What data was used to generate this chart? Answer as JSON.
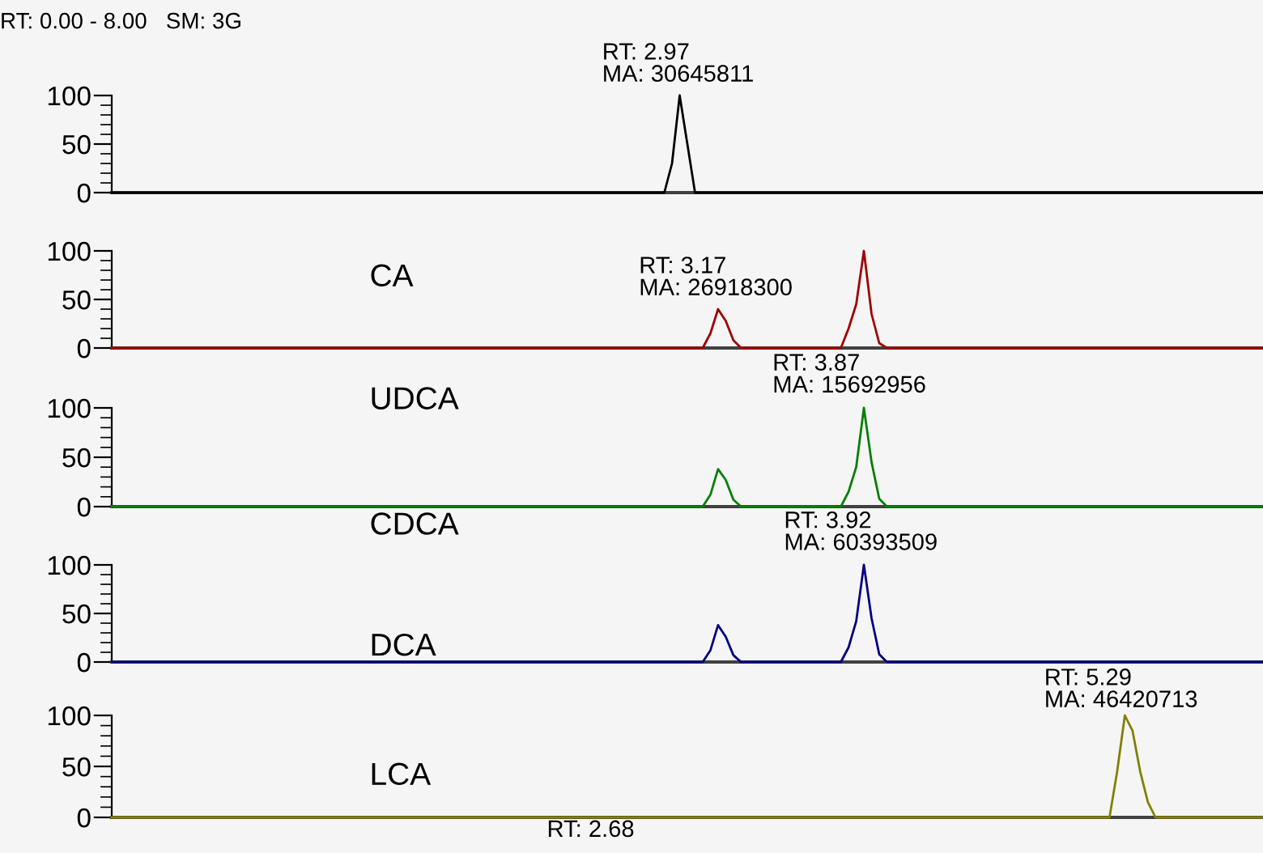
{
  "chart_data": [
    {
      "type": "line",
      "title": "RT: 0.00 - 8.00   SM: 3G",
      "categories": [
        null,
        null,
        null,
        null,
        null,
        null,
        null,
        null,
        null,
        null,
        null,
        null,
        null,
        null,
        null,
        null,
        null,
        null,
        null,
        null,
        null,
        null,
        null,
        null,
        null,
        null,
        null,
        null,
        null,
        null,
        null,
        null,
        null,
        null,
        null,
        null,
        null,
        null,
        null,
        null,
        null,
        null,
        null,
        null,
        null,
        null,
        null,
        null,
        null,
        null,
        null,
        null,
        null,
        null,
        null,
        null,
        null,
        null,
        null,
        null,
        null,
        null,
        null,
        null,
        null,
        null,
        null,
        null,
        null,
        null,
        null,
        null,
        null,
        null,
        null,
        null,
        null,
        null,
        null,
        null,
        null,
        null,
        null,
        null,
        null,
        null,
        null,
        null,
        null,
        null,
        null,
        null,
        null,
        null,
        null,
        null,
        null,
        null,
        null,
        null,
        null,
        null,
        null,
        null,
        null,
        null,
        null,
        null,
        null,
        null,
        null,
        null,
        null,
        null,
        null,
        null,
        null,
        null,
        null,
        null,
        null,
        null,
        null,
        null,
        null,
        null,
        null,
        null,
        null,
        null,
        null,
        null,
        null,
        null,
        null,
        null,
        null,
        null,
        null,
        null,
        null,
        null,
        null,
        null,
        null,
        null,
        null,
        null,
        null,
        null,
        null
      ],
      "ylim": [
        0,
        100
      ],
      "yticks": [
        0,
        50,
        100
      ],
      "tick_labels": "y",
      "series": [
        {
          "color": "#000000",
          "values": [
            0,
            0,
            0,
            0,
            0,
            0,
            0,
            0,
            0,
            0,
            0,
            0,
            0,
            0,
            0,
            0,
            0,
            0,
            0,
            0,
            0,
            0,
            0,
            0,
            0,
            0,
            0,
            0,
            0,
            0,
            0,
            0,
            0,
            0,
            0,
            0,
            0,
            0,
            0,
            0,
            0,
            0,
            0,
            0,
            0,
            0,
            0,
            0,
            0,
            0,
            0,
            0,
            0,
            0,
            0,
            0,
            0,
            0,
            0,
            0,
            0,
            0,
            0,
            0,
            0,
            0,
            0,
            0,
            0,
            0,
            0,
            0,
            0,
            30,
            100,
            50,
            0,
            0,
            0,
            0,
            0,
            0,
            0,
            0,
            0,
            0,
            0,
            0,
            0,
            0,
            0,
            0,
            0,
            0,
            0,
            0,
            0,
            0,
            0,
            0,
            0,
            0,
            0,
            0,
            0,
            0,
            0,
            0,
            0,
            0,
            0,
            0,
            0,
            0,
            0,
            0,
            0,
            0,
            0,
            0,
            0,
            0,
            0,
            0,
            0,
            0,
            0,
            0,
            0,
            0,
            0,
            0,
            0,
            0,
            0,
            0,
            0,
            0,
            0,
            0,
            0,
            0,
            0,
            0,
            0,
            0,
            0,
            0,
            0,
            0,
            0
          ]
        }
      ],
      "annotations": [
        "RT: 2.97\nMA: 30645811"
      ]
    },
    {
      "type": "line",
      "categories": [
        null,
        null,
        null,
        null,
        null,
        null,
        null,
        null,
        null,
        null,
        null,
        null,
        null,
        null,
        null,
        null,
        null,
        null,
        null,
        null,
        null,
        null,
        null,
        null,
        null,
        null,
        null,
        null,
        null,
        null,
        null,
        null,
        null,
        null,
        null,
        null,
        null,
        null,
        null,
        null,
        null,
        null,
        null,
        null,
        null,
        null,
        null,
        null,
        null,
        null,
        null,
        null,
        null,
        null,
        null,
        null,
        null,
        null,
        null,
        null,
        null,
        null,
        null,
        null,
        null,
        null,
        null,
        null,
        null,
        null,
        null,
        null,
        null,
        null,
        null,
        null,
        null,
        null,
        null,
        null,
        null,
        null,
        null,
        null,
        null,
        null,
        null,
        null,
        null,
        null,
        null,
        null,
        null,
        null,
        null,
        null,
        null,
        null,
        null,
        null,
        null,
        null,
        null,
        null,
        null,
        null,
        null,
        null,
        null,
        null,
        null,
        null,
        null,
        null,
        null,
        null,
        null,
        null,
        null,
        null,
        null,
        null,
        null,
        null,
        null,
        null,
        null,
        null,
        null,
        null,
        null,
        null,
        null,
        null,
        null,
        null,
        null,
        null,
        null,
        null,
        null,
        null,
        null,
        null,
        null,
        null,
        null,
        null,
        null,
        null,
        null
      ],
      "ylim": [
        0,
        100
      ],
      "yticks": [
        0,
        50,
        100
      ],
      "tick_labels": "y",
      "series": [
        {
          "color": "#a00000",
          "values": [
            0,
            0,
            0,
            0,
            0,
            0,
            0,
            0,
            0,
            0,
            0,
            0,
            0,
            0,
            0,
            0,
            0,
            0,
            0,
            0,
            0,
            0,
            0,
            0,
            0,
            0,
            0,
            0,
            0,
            0,
            0,
            0,
            0,
            0,
            0,
            0,
            0,
            0,
            0,
            0,
            0,
            0,
            0,
            0,
            0,
            0,
            0,
            0,
            0,
            0,
            0,
            0,
            0,
            0,
            0,
            0,
            0,
            0,
            0,
            0,
            0,
            0,
            0,
            0,
            0,
            0,
            0,
            0,
            0,
            0,
            0,
            0,
            0,
            0,
            0,
            0,
            0,
            0,
            15,
            40,
            28,
            8,
            0,
            0,
            0,
            0,
            0,
            0,
            0,
            0,
            0,
            0,
            0,
            0,
            0,
            0,
            20,
            45,
            100,
            35,
            5,
            0,
            0,
            0,
            0,
            0,
            0,
            0,
            0,
            0,
            0,
            0,
            0,
            0,
            0,
            0,
            0,
            0,
            0,
            0,
            0,
            0,
            0,
            0,
            0,
            0,
            0,
            0,
            0,
            0,
            0,
            0,
            0,
            0,
            0,
            0,
            0,
            0,
            0,
            0,
            0,
            0,
            0,
            0,
            0,
            0,
            0,
            0,
            0,
            0,
            0
          ]
        }
      ],
      "annotations": [
        "CA",
        "RT: 3.17\nMA: 26918300"
      ]
    },
    {
      "type": "line",
      "categories": [
        null,
        null,
        null,
        null,
        null,
        null,
        null,
        null,
        null,
        null,
        null,
        null,
        null,
        null,
        null,
        null,
        null,
        null,
        null,
        null,
        null,
        null,
        null,
        null,
        null,
        null,
        null,
        null,
        null,
        null,
        null,
        null,
        null,
        null,
        null,
        null,
        null,
        null,
        null,
        null,
        null,
        null,
        null,
        null,
        null,
        null,
        null,
        null,
        null,
        null,
        null,
        null,
        null,
        null,
        null,
        null,
        null,
        null,
        null,
        null,
        null,
        null,
        null,
        null,
        null,
        null,
        null,
        null,
        null,
        null,
        null,
        null,
        null,
        null,
        null,
        null,
        null,
        null,
        null,
        null,
        null,
        null,
        null,
        null,
        null,
        null,
        null,
        null,
        null,
        null,
        null,
        null,
        null,
        null,
        null,
        null,
        null,
        null,
        null,
        null,
        null,
        null,
        null,
        null,
        null,
        null,
        null,
        null,
        null,
        null,
        null,
        null,
        null,
        null,
        null,
        null,
        null,
        null,
        null,
        null,
        null,
        null,
        null,
        null,
        null,
        null,
        null,
        null,
        null,
        null,
        null,
        null,
        null,
        null,
        null,
        null,
        null,
        null,
        null,
        null,
        null,
        null,
        null,
        null,
        null,
        null,
        null,
        null,
        null,
        null,
        null
      ],
      "ylim": [
        0,
        100
      ],
      "yticks": [
        0,
        50,
        100
      ],
      "tick_labels": "y",
      "series": [
        {
          "color": "#008000",
          "values": [
            0,
            0,
            0,
            0,
            0,
            0,
            0,
            0,
            0,
            0,
            0,
            0,
            0,
            0,
            0,
            0,
            0,
            0,
            0,
            0,
            0,
            0,
            0,
            0,
            0,
            0,
            0,
            0,
            0,
            0,
            0,
            0,
            0,
            0,
            0,
            0,
            0,
            0,
            0,
            0,
            0,
            0,
            0,
            0,
            0,
            0,
            0,
            0,
            0,
            0,
            0,
            0,
            0,
            0,
            0,
            0,
            0,
            0,
            0,
            0,
            0,
            0,
            0,
            0,
            0,
            0,
            0,
            0,
            0,
            0,
            0,
            0,
            0,
            0,
            0,
            0,
            0,
            0,
            12,
            38,
            27,
            7,
            0,
            0,
            0,
            0,
            0,
            0,
            0,
            0,
            0,
            0,
            0,
            0,
            0,
            0,
            15,
            40,
            100,
            45,
            8,
            0,
            0,
            0,
            0,
            0,
            0,
            0,
            0,
            0,
            0,
            0,
            0,
            0,
            0,
            0,
            0,
            0,
            0,
            0,
            0,
            0,
            0,
            0,
            0,
            0,
            0,
            0,
            0,
            0,
            0,
            0,
            0,
            0,
            0,
            0,
            0,
            0,
            0,
            0,
            0,
            0,
            0,
            0,
            0,
            0,
            0,
            0,
            0,
            0,
            0
          ]
        }
      ],
      "annotations": [
        "UDCA",
        "CDCA",
        "RT: 3.87\nMA: 15692956"
      ]
    },
    {
      "type": "line",
      "categories": [
        null,
        null,
        null,
        null,
        null,
        null,
        null,
        null,
        null,
        null,
        null,
        null,
        null,
        null,
        null,
        null,
        null,
        null,
        null,
        null,
        null,
        null,
        null,
        null,
        null,
        null,
        null,
        null,
        null,
        null,
        null,
        null,
        null,
        null,
        null,
        null,
        null,
        null,
        null,
        null,
        null,
        null,
        null,
        null,
        null,
        null,
        null,
        null,
        null,
        null,
        null,
        null,
        null,
        null,
        null,
        null,
        null,
        null,
        null,
        null,
        null,
        null,
        null,
        null,
        null,
        null,
        null,
        null,
        null,
        null,
        null,
        null,
        null,
        null,
        null,
        null,
        null,
        null,
        null,
        null,
        null,
        null,
        null,
        null,
        null,
        null,
        null,
        null,
        null,
        null,
        null,
        null,
        null,
        null,
        null,
        null,
        null,
        null,
        null,
        null,
        null,
        null,
        null,
        null,
        null,
        null,
        null,
        null,
        null,
        null,
        null,
        null,
        null,
        null,
        null,
        null,
        null,
        null,
        null,
        null,
        null,
        null,
        null,
        null,
        null,
        null,
        null,
        null,
        null,
        null,
        null,
        null,
        null,
        null,
        null,
        null,
        null,
        null,
        null,
        null,
        null,
        null,
        null,
        null,
        null,
        null,
        null,
        null,
        null,
        null,
        null
      ],
      "ylim": [
        0,
        100
      ],
      "yticks": [
        0,
        50,
        100
      ],
      "tick_labels": "y",
      "series": [
        {
          "color": "#000080",
          "values": [
            0,
            0,
            0,
            0,
            0,
            0,
            0,
            0,
            0,
            0,
            0,
            0,
            0,
            0,
            0,
            0,
            0,
            0,
            0,
            0,
            0,
            0,
            0,
            0,
            0,
            0,
            0,
            0,
            0,
            0,
            0,
            0,
            0,
            0,
            0,
            0,
            0,
            0,
            0,
            0,
            0,
            0,
            0,
            0,
            0,
            0,
            0,
            0,
            0,
            0,
            0,
            0,
            0,
            0,
            0,
            0,
            0,
            0,
            0,
            0,
            0,
            0,
            0,
            0,
            0,
            0,
            0,
            0,
            0,
            0,
            0,
            0,
            0,
            0,
            0,
            0,
            0,
            0,
            12,
            38,
            26,
            7,
            0,
            0,
            0,
            0,
            0,
            0,
            0,
            0,
            0,
            0,
            0,
            0,
            0,
            0,
            15,
            42,
            100,
            45,
            8,
            0,
            0,
            0,
            0,
            0,
            0,
            0,
            0,
            0,
            0,
            0,
            0,
            0,
            0,
            0,
            0,
            0,
            0,
            0,
            0,
            0,
            0,
            0,
            0,
            0,
            0,
            0,
            0,
            0,
            0,
            0,
            0,
            0,
            0,
            0,
            0,
            0,
            0,
            0,
            0,
            0,
            0,
            0,
            0,
            0,
            0,
            0,
            0,
            0,
            0
          ]
        }
      ],
      "annotations": [
        "DCA",
        "RT: 3.92\nMA: 60393509"
      ]
    },
    {
      "type": "line",
      "categories": [
        null,
        null,
        null,
        null,
        null,
        null,
        null,
        null,
        null,
        null,
        null,
        null,
        null,
        null,
        null,
        null,
        null,
        null,
        null,
        null,
        null,
        null,
        null,
        null,
        null,
        null,
        null,
        null,
        null,
        null,
        null,
        null,
        null,
        null,
        null,
        null,
        null,
        null,
        null,
        null,
        null,
        null,
        null,
        null,
        null,
        null,
        null,
        null,
        null,
        null,
        null,
        null,
        null,
        null,
        null,
        null,
        null,
        null,
        null,
        null,
        null,
        null,
        null,
        null,
        null,
        null,
        null,
        null,
        null,
        null,
        null,
        null,
        null,
        null,
        null,
        null,
        null,
        null,
        null,
        null,
        null,
        null,
        null,
        null,
        null,
        null,
        null,
        null,
        null,
        null,
        null,
        null,
        null,
        null,
        null,
        null,
        null,
        null,
        null,
        null,
        null,
        null,
        null,
        null,
        null,
        null,
        null,
        null,
        null,
        null,
        null,
        null,
        null,
        null,
        null,
        null,
        null,
        null,
        null,
        null,
        null,
        null,
        null,
        null,
        null,
        null,
        null,
        null,
        null,
        null,
        null,
        null,
        null,
        null,
        null,
        null,
        null,
        null,
        null,
        null,
        null,
        null,
        null,
        null,
        null,
        null,
        null,
        null,
        null,
        null,
        null
      ],
      "ylim": [
        0,
        100
      ],
      "yticks": [
        0,
        50,
        100
      ],
      "tick_labels": "y",
      "series": [
        {
          "color": "#808000",
          "values": [
            0,
            0,
            0,
            0,
            0,
            0,
            0,
            0,
            0,
            0,
            0,
            0,
            0,
            0,
            0,
            0,
            0,
            0,
            0,
            0,
            0,
            0,
            0,
            0,
            0,
            0,
            0,
            0,
            0,
            0,
            0,
            0,
            0,
            0,
            0,
            0,
            0,
            0,
            0,
            0,
            0,
            0,
            0,
            0,
            0,
            0,
            0,
            0,
            0,
            0,
            0,
            0,
            0,
            0,
            0,
            0,
            0,
            0,
            0,
            0,
            0,
            0,
            0,
            0,
            0,
            0,
            0,
            0,
            0,
            0,
            0,
            0,
            0,
            0,
            0,
            0,
            0,
            0,
            0,
            0,
            0,
            0,
            0,
            0,
            0,
            0,
            0,
            0,
            0,
            0,
            0,
            0,
            0,
            0,
            0,
            0,
            0,
            0,
            0,
            0,
            0,
            0,
            0,
            0,
            0,
            0,
            0,
            0,
            0,
            0,
            0,
            0,
            0,
            0,
            0,
            0,
            0,
            0,
            0,
            0,
            0,
            0,
            0,
            0,
            0,
            0,
            0,
            0,
            0,
            0,
            0,
            45,
            100,
            85,
            45,
            15,
            0,
            0,
            0,
            0,
            0,
            0,
            0,
            0,
            0,
            0,
            0,
            0,
            0,
            0,
            0
          ]
        }
      ],
      "annotations": [
        "LCA",
        "RT: 2.68",
        "RT: 5.29\nMA: 46420713"
      ]
    }
  ]
}
